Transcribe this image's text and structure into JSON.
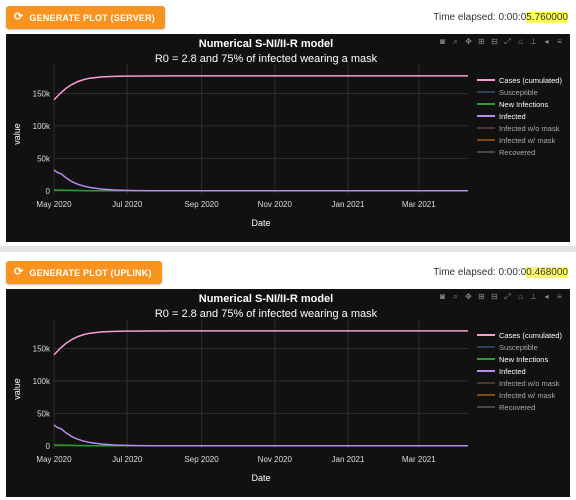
{
  "panels": [
    {
      "button_label": "GENERATE PLOT (SERVER)",
      "elapsed_prefix": "Time elapsed: 0:00:0",
      "elapsed_value": "5.760000",
      "highlight_color": "#ffff4d"
    },
    {
      "button_label": "GENERATE PLOT (UPLINK)",
      "elapsed_prefix": "Time elapsed: 0:00:0",
      "elapsed_value": "0.468000",
      "highlight_color": "#ffff4d"
    }
  ],
  "modebar_icons": [
    "camera-icon",
    "zoom-icon",
    "pan-icon",
    "zoom-in-icon",
    "zoom-out-icon",
    "autoscale-icon",
    "home-icon",
    "spike-lines-icon",
    "hover-closest-icon",
    "hover-compare-icon"
  ],
  "chart_data": {
    "type": "line",
    "title": "Numerical S-NI/II-R model",
    "subtitle": "R0 = 2.8 and 75% of infected wearing a mask",
    "xlabel": "Date",
    "ylabel": "value",
    "x_ticks": [
      "May 2020",
      "Jul 2020",
      "Sep 2020",
      "Nov 2020",
      "Jan 2021",
      "Mar 2021"
    ],
    "y_ticks": [
      "0",
      "50k",
      "100k",
      "150k"
    ],
    "ylim": [
      -5000,
      180000
    ],
    "x_range_days": [
      0,
      345
    ],
    "grid": true,
    "legend_position": "right",
    "series": [
      {
        "name": "Cases (cumulated)",
        "color": "#ff9ad5",
        "visible": true,
        "x": [
          0,
          5,
          10,
          15,
          20,
          25,
          30,
          40,
          50,
          60,
          80,
          100,
          345
        ],
        "y": [
          140000,
          150000,
          158000,
          164000,
          168500,
          171500,
          173500,
          175500,
          176300,
          176700,
          176900,
          177000,
          177000
        ]
      },
      {
        "name": "Susceptible",
        "color": "#4a6fa5",
        "visible": false
      },
      {
        "name": "New Infections",
        "color": "#2ca02c",
        "visible": true,
        "x": [
          0,
          10,
          20,
          30,
          40,
          60,
          80,
          345
        ],
        "y": [
          1200,
          800,
          400,
          150,
          60,
          10,
          0,
          0
        ]
      },
      {
        "name": "Infected",
        "color": "#b68cf0",
        "visible": true,
        "x": [
          0,
          3,
          6,
          10,
          15,
          20,
          25,
          30,
          40,
          50,
          60,
          70,
          80,
          100,
          345
        ],
        "y": [
          32000,
          28000,
          26000,
          20000,
          14000,
          10000,
          7000,
          5000,
          2500,
          1200,
          500,
          200,
          80,
          0,
          0
        ]
      },
      {
        "name": "Infected w/o mask",
        "color": "#8c564b",
        "visible": false
      },
      {
        "name": "Infected w/ mask",
        "color": "#ff7f0e",
        "visible": false
      },
      {
        "name": "Recovered",
        "color": "#7f7f7f",
        "visible": false
      }
    ]
  }
}
